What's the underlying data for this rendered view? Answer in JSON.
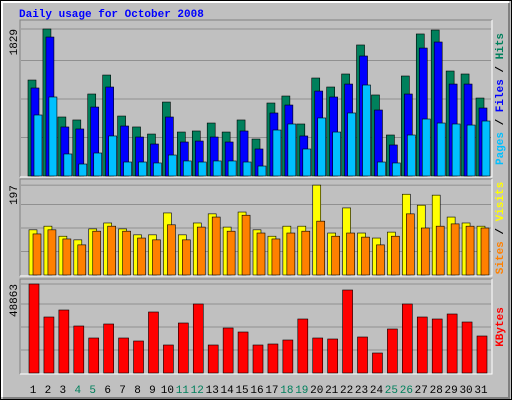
{
  "chart_data": [
    {
      "type": "bar",
      "title": "Daily usage for October 2008",
      "series": [
        {
          "name": "Hits",
          "color": "#00805c",
          "values": [
            1194,
            1829,
            734,
            697,
            1020,
            1256,
            746,
            610,
            522,
            920,
            547,
            560,
            659,
            547,
            697,
            460,
            908,
            995,
            647,
            1219,
            1107,
            1269,
            1630,
            1008,
            510,
            1244,
            1767,
            1816,
            1306,
            1269,
            970
          ]
        },
        {
          "name": "Files",
          "color": "#0000ff",
          "values": [
            1095,
            1729,
            610,
            585,
            858,
            1107,
            622,
            485,
            398,
            734,
            423,
            435,
            485,
            423,
            560,
            336,
            784,
            883,
            498,
            1057,
            983,
            1144,
            1493,
            821,
            386,
            1020,
            1592,
            1667,
            1144,
            1144,
            846
          ]
        },
        {
          "name": "Pages",
          "color": "#00c0ff",
          "values": [
            759,
            983,
            274,
            149,
            286,
            498,
            174,
            174,
            162,
            261,
            187,
            174,
            187,
            187,
            174,
            124,
            572,
            647,
            336,
            722,
            547,
            784,
            1132,
            174,
            162,
            510,
            709,
            659,
            647,
            634,
            684
          ]
        }
      ],
      "ylim": [
        0,
        1916
      ],
      "yticks": [
        1829
      ]
    },
    {
      "type": "bar",
      "series": [
        {
          "name": "Visits",
          "color": "#ffff00",
          "values": [
            99,
            107,
            85,
            77,
            101,
            114,
            101,
            88,
            88,
            136,
            88,
            114,
            134,
            105,
            138,
            99,
            85,
            107,
            107,
            197,
            92,
            147,
            92,
            81,
            94,
            177,
            153,
            175,
            127,
            114,
            107
          ]
        },
        {
          "name": "Sites",
          "color": "#ff8000",
          "values": [
            90,
            99,
            79,
            66,
            96,
            107,
            96,
            81,
            77,
            110,
            77,
            105,
            127,
            96,
            131,
            92,
            79,
            92,
            96,
            118,
            85,
            92,
            83,
            66,
            85,
            134,
            103,
            107,
            112,
            107,
            103
          ]
        }
      ],
      "ylim": [
        0,
        206
      ],
      "yticks": [
        197
      ]
    },
    {
      "type": "bar",
      "series": [
        {
          "name": "KBytes",
          "color": "#ff0000",
          "values": [
            48863,
            30744,
            34587,
            25803,
            19215,
            26901,
            19215,
            17568,
            33489,
            15372,
            27450,
            37881,
            15372,
            24705,
            22509,
            15372,
            15921,
            18117,
            29646,
            19215,
            18666,
            45567,
            19764,
            10980,
            24156,
            37881,
            30744,
            29646,
            32391,
            28000,
            20313
          ]
        }
      ],
      "ylim": [
        0,
        50510
      ],
      "yticks": [
        48863
      ],
      "categories": [
        "1",
        "2",
        "3",
        "4",
        "5",
        "6",
        "7",
        "8",
        "9",
        "10",
        "11",
        "12",
        "13",
        "14",
        "15",
        "16",
        "17",
        "18",
        "19",
        "20",
        "21",
        "22",
        "23",
        "24",
        "25",
        "26",
        "27",
        "28",
        "29",
        "30",
        "31"
      ],
      "highlight": {
        "color": "#00805c",
        "categories": [
          "4",
          "5",
          "11",
          "12",
          "18",
          "19",
          "25",
          "26"
        ]
      }
    }
  ]
}
